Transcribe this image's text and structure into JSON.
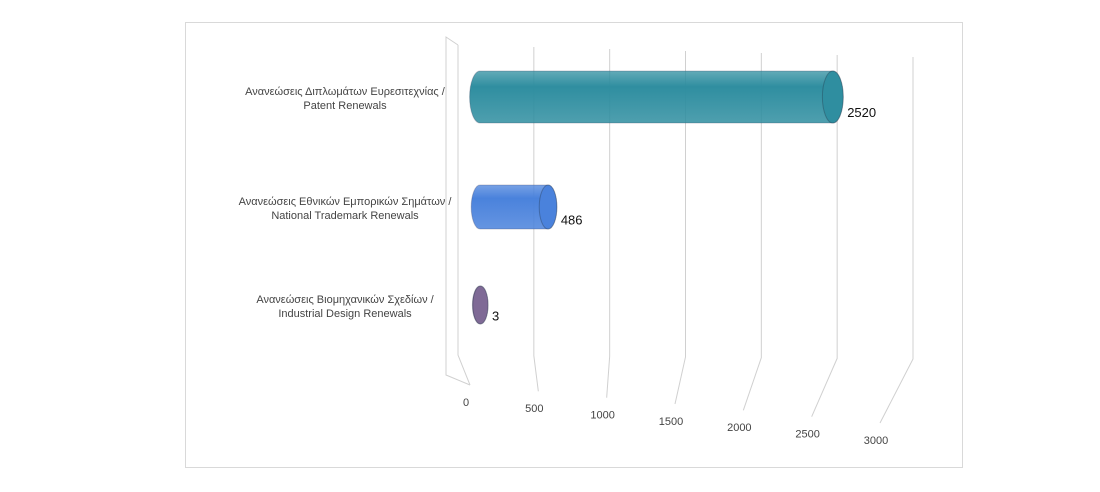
{
  "chart_data": {
    "type": "bar3d",
    "orientation": "horizontal",
    "categories": [
      [
        "Ανανεώσεις Διπλωμάτων Ευρεσιτεχνίας /",
        "Patent Renewals"
      ],
      [
        "Ανανεώσεις Εθνικών Εμπορικών Σημάτων /",
        "National Trademark Renewals"
      ],
      [
        "Ανανεώσεις Βιομηχανικών Σχεδίων  /",
        " Industrial Design Renewals"
      ]
    ],
    "values": [
      2520,
      486,
      3
    ],
    "colors": [
      "#2f8ea0",
      "#4a82dc",
      "#7f6a96"
    ],
    "xlim": [
      0,
      3000
    ],
    "xticks": [
      0,
      500,
      1000,
      1500,
      2000,
      2500,
      3000
    ],
    "grid": true
  }
}
